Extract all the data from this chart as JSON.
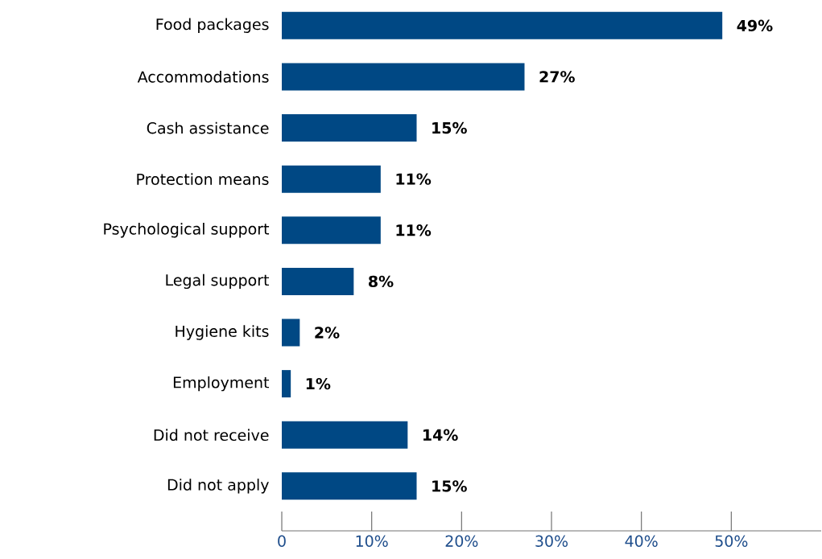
{
  "chart_data": {
    "type": "bar",
    "orientation": "horizontal",
    "categories": [
      "Food packages",
      "Accommodations",
      "Cash assistance",
      "Protection means",
      "Psychological support",
      "Legal support",
      "Hygiene kits",
      "Employment",
      "Did not receive",
      "Did not apply"
    ],
    "values": [
      49,
      27,
      15,
      11,
      11,
      8,
      2,
      1,
      14,
      15
    ],
    "value_labels": [
      "49%",
      "27%",
      "15%",
      "11%",
      "11%",
      "8%",
      "2%",
      "1%",
      "14%",
      "15%"
    ],
    "color": "#004884",
    "xlim": [
      0,
      60
    ],
    "xticks": [
      0,
      {
        "value": 10,
        "label": "10%"
      },
      {
        "value": 20,
        "label": "20%"
      },
      {
        "value": 30,
        "label": "30%"
      },
      {
        "value": 40,
        "label": "40%"
      },
      {
        "value": 50,
        "label": "50%"
      }
    ]
  }
}
